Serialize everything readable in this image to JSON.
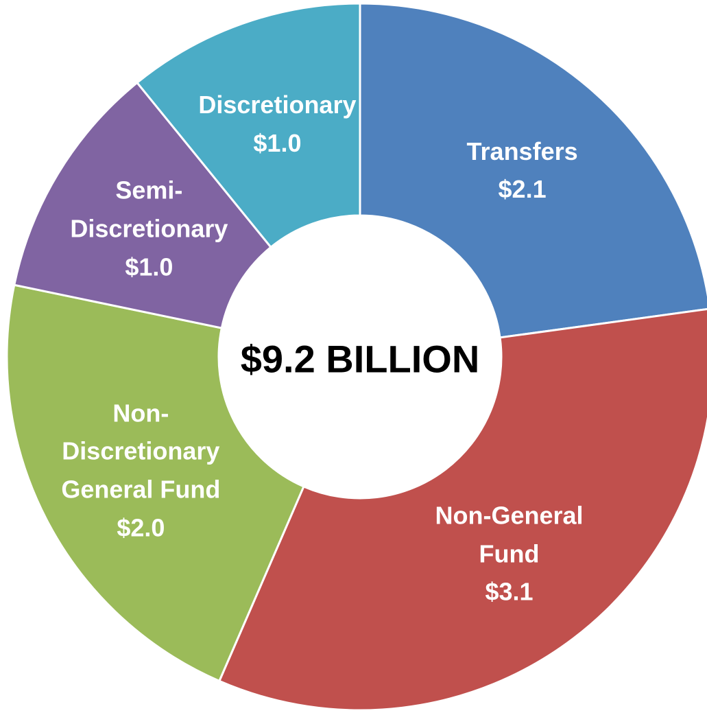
{
  "chart_data": {
    "type": "donut",
    "center_label": "$9.2 BILLION",
    "categories": [
      "Transfers",
      "Non-General Fund",
      "Non-\nDiscretionary\nGeneral Fund",
      "Semi-\nDiscretionary",
      "Discretionary"
    ],
    "values": [
      2.1,
      3.1,
      2.0,
      1.0,
      1.0
    ],
    "value_labels": [
      "$2.1",
      "$3.1",
      "$2.0",
      "$1.0",
      "$1.0"
    ],
    "colors": [
      "#4f81bd",
      "#c0504d",
      "#9bbb59",
      "#8064a2",
      "#4bacc6"
    ]
  }
}
